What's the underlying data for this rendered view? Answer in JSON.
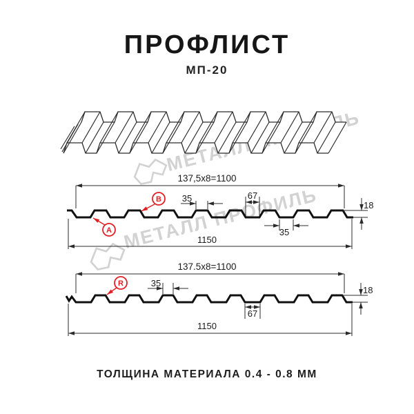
{
  "header": {
    "title": "ПРОФЛИСТ",
    "subtitle": "МП-20"
  },
  "footer": {
    "caption": "ТОЛЩИНА МАТЕРИАЛА 0.4 - 0.8 ММ"
  },
  "watermark": {
    "brand": "МЕТАЛЛ ПРОФИЛЬ"
  },
  "colors": {
    "red": "#e31e24",
    "profile_line": "#111111",
    "dim_line": "#2b2b2b",
    "dim_text": "#1a1a1a",
    "watermark": "#d2d2d2",
    "sheet_outline": "#2b2b2b"
  },
  "section_a": {
    "pitch_formula": "137,5x8=1100",
    "overall_width": "1150",
    "rib_top_width": "35",
    "rib_base_width": "67",
    "flange_width": "35",
    "height": "18",
    "label_a": "A",
    "label_b": "B"
  },
  "section_r": {
    "pitch_formula": "137.5x8=1100",
    "overall_width": "1150",
    "rib_top_width": "35",
    "valley_width": "67",
    "height": "18",
    "label_r": "R"
  }
}
